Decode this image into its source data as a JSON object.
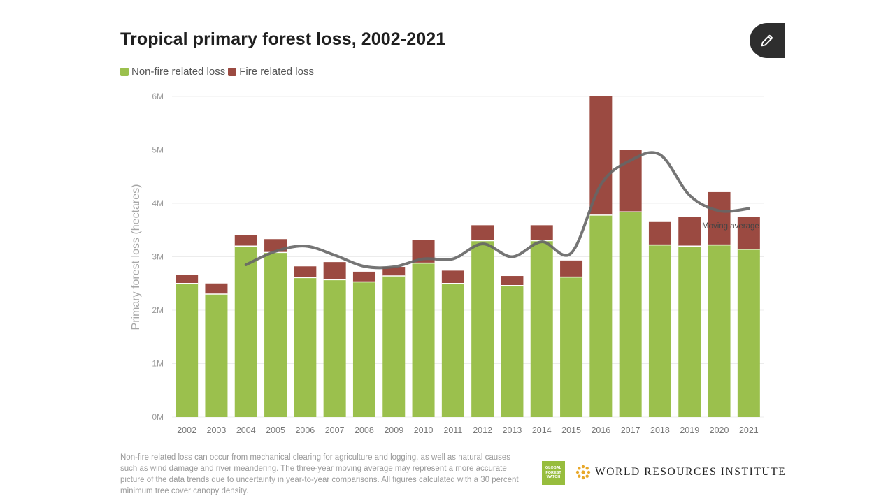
{
  "title": "Tropical primary forest loss, 2002-2021",
  "legend": {
    "non_fire_label": "Non-fire related loss",
    "fire_label": "Fire related loss"
  },
  "colors": {
    "non_fire": "#9bc04d",
    "fire": "#9b4a41",
    "moving_average": "#666666",
    "grid": "#ececec",
    "axis_text": "#9a9a9a"
  },
  "edit_button_icon": "pencil-icon",
  "chart_data": {
    "type": "bar",
    "stacked": true,
    "categories": [
      "2002",
      "2003",
      "2004",
      "2005",
      "2006",
      "2007",
      "2008",
      "2009",
      "2010",
      "2011",
      "2012",
      "2013",
      "2014",
      "2015",
      "2016",
      "2017",
      "2018",
      "2019",
      "2020",
      "2021"
    ],
    "series": [
      {
        "name": "Non-fire related loss",
        "values": [
          2500000,
          2300000,
          3200000,
          3080000,
          2610000,
          2570000,
          2530000,
          2640000,
          2880000,
          2500000,
          3300000,
          2460000,
          3300000,
          2620000,
          3780000,
          3840000,
          3220000,
          3200000,
          3220000,
          3140000
        ]
      },
      {
        "name": "Fire related loss",
        "values": [
          160000,
          200000,
          200000,
          250000,
          210000,
          330000,
          190000,
          170000,
          430000,
          240000,
          290000,
          180000,
          290000,
          310000,
          2220000,
          1160000,
          430000,
          550000,
          990000,
          610000
        ]
      }
    ],
    "moving_average": {
      "label": "Moving average",
      "values": [
        null,
        null,
        2850000,
        3100000,
        3200000,
        3030000,
        2820000,
        2810000,
        2960000,
        2960000,
        3240000,
        3000000,
        3280000,
        3070000,
        4350000,
        4800000,
        4910000,
        4150000,
        3860000,
        3900000
      ]
    },
    "ylabel": "Primary forest loss (hectares)",
    "xlabel": "",
    "ylim": [
      0,
      6000000
    ],
    "yticks": [
      {
        "value": 0,
        "label": "0M"
      },
      {
        "value": 1000000,
        "label": "1M"
      },
      {
        "value": 2000000,
        "label": "2M"
      },
      {
        "value": 3000000,
        "label": "3M"
      },
      {
        "value": 4000000,
        "label": "4M"
      },
      {
        "value": 5000000,
        "label": "5M"
      },
      {
        "value": 6000000,
        "label": "6M"
      }
    ],
    "grid": true,
    "legend_position": "top-left"
  },
  "footnote": "Non-fire related loss can occur from mechanical clearing for agriculture and logging, as well as natural causes such as wind damage and river meandering. The three-year moving average may represent a more accurate picture of the data trends due to uncertainty in year-to-year comparisons. All figures calculated with a 30 percent minimum tree cover canopy density.",
  "logos": {
    "gfw_lines": [
      "GLOBAL",
      "FOREST",
      "WATCH"
    ],
    "wri_text": "WORLD RESOURCES INSTITUTE",
    "wri_icon": "wri-star-icon"
  }
}
